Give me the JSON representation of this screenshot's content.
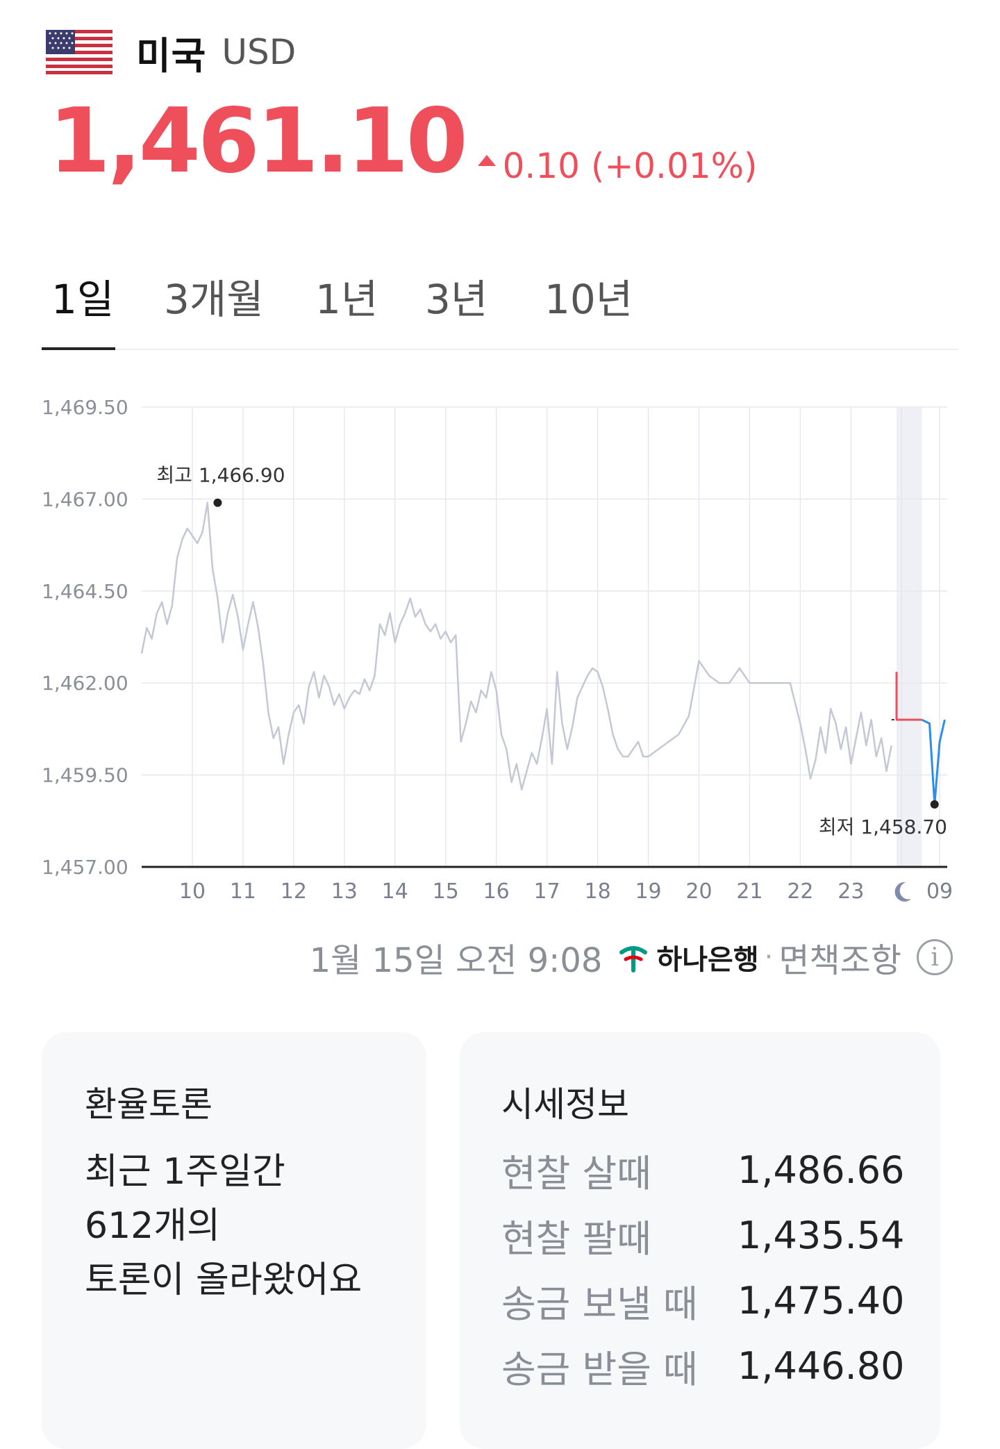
{
  "header": {
    "country": "미국",
    "currency_code": "USD",
    "flag_icon": "us-flag-icon"
  },
  "price": {
    "value": "1,461.10",
    "change": "0.10 (+0.01%)",
    "direction": "up",
    "color": "#ee4f5a"
  },
  "tabs": [
    {
      "label": "1일",
      "active": true
    },
    {
      "label": "3개월",
      "active": false
    },
    {
      "label": "1년",
      "active": false
    },
    {
      "label": "3년",
      "active": false
    },
    {
      "label": "10년",
      "active": false
    }
  ],
  "chart_data": {
    "type": "line",
    "x_tick_labels": [
      "10",
      "11",
      "12",
      "13",
      "14",
      "15",
      "16",
      "17",
      "18",
      "19",
      "20",
      "21",
      "22",
      "23",
      "moon-icon",
      "09"
    ],
    "y_tick_labels": [
      "1,469.50",
      "1,467.00",
      "1,464.50",
      "1,462.00",
      "1,459.50",
      "1,457.00"
    ],
    "ylim": [
      1457.0,
      1469.5
    ],
    "grid": true,
    "high_label": "최고 1,466.90",
    "low_label": "최저 1,458.70",
    "high": 1466.9,
    "low": 1458.7,
    "reference_value": 1461.0,
    "series": [
      {
        "color": "#c4c8d6",
        "x": [
          9.0,
          9.1,
          9.2,
          9.3,
          9.4,
          9.5,
          9.6,
          9.7,
          9.8,
          9.9,
          10.0,
          10.1,
          10.2,
          10.3,
          10.4,
          10.5,
          10.6,
          10.7,
          10.8,
          10.9,
          11.0,
          11.1,
          11.2,
          11.3,
          11.4,
          11.5,
          11.6,
          11.7,
          11.8,
          11.9,
          12.0,
          12.1,
          12.2,
          12.3,
          12.4,
          12.5,
          12.6,
          12.7,
          12.8,
          12.9,
          13.0,
          13.1,
          13.2,
          13.3,
          13.4,
          13.5,
          13.6,
          13.7,
          13.8,
          13.9,
          14.0,
          14.1,
          14.2,
          14.3,
          14.4,
          14.5,
          14.6,
          14.7,
          14.8,
          14.9,
          15.0,
          15.1,
          15.2,
          15.3,
          15.4,
          15.5,
          15.6,
          15.7,
          15.8,
          15.9,
          16.0,
          16.1,
          16.2,
          16.3,
          16.4,
          16.5,
          16.6,
          16.7,
          16.8,
          16.9,
          17.0,
          17.1,
          17.2,
          17.3,
          17.4,
          17.5,
          17.6,
          17.7,
          17.8,
          17.9,
          18.0,
          18.1,
          18.2,
          18.3,
          18.4,
          18.5,
          18.6,
          18.7,
          18.8,
          18.9,
          19.0,
          19.2,
          19.4,
          19.6,
          19.8,
          20.0,
          20.2,
          20.4,
          20.6,
          20.8,
          21.0,
          21.2,
          21.4,
          21.6,
          21.8,
          22.0,
          22.1,
          22.2,
          22.3,
          22.4,
          22.5,
          22.6,
          22.7,
          22.8,
          22.9,
          23.0,
          23.1,
          23.2,
          23.3,
          23.4,
          23.5,
          23.6,
          23.7,
          23.8
        ],
        "y": [
          1462.8,
          1463.5,
          1463.2,
          1463.9,
          1464.2,
          1463.6,
          1464.1,
          1465.4,
          1465.9,
          1466.2,
          1466.0,
          1465.8,
          1466.1,
          1466.9,
          1465.1,
          1464.3,
          1463.1,
          1463.9,
          1464.4,
          1463.8,
          1462.9,
          1463.6,
          1464.2,
          1463.5,
          1462.5,
          1461.2,
          1460.5,
          1460.8,
          1459.8,
          1460.6,
          1461.2,
          1461.4,
          1460.9,
          1461.9,
          1462.3,
          1461.6,
          1462.2,
          1461.9,
          1461.4,
          1461.7,
          1461.3,
          1461.6,
          1461.8,
          1461.7,
          1462.1,
          1461.8,
          1462.2,
          1463.6,
          1463.3,
          1463.9,
          1463.1,
          1463.6,
          1463.9,
          1464.3,
          1463.8,
          1464.0,
          1463.6,
          1463.4,
          1463.6,
          1463.2,
          1463.4,
          1463.1,
          1463.3,
          1460.4,
          1460.9,
          1461.5,
          1461.2,
          1461.8,
          1461.6,
          1462.3,
          1461.8,
          1460.6,
          1460.2,
          1459.3,
          1459.8,
          1459.1,
          1459.6,
          1460.1,
          1459.8,
          1460.5,
          1461.3,
          1459.8,
          1462.3,
          1460.9,
          1460.2,
          1460.8,
          1461.6,
          1461.9,
          1462.2,
          1462.4,
          1462.3,
          1461.9,
          1461.3,
          1460.6,
          1460.2,
          1460.0,
          1460.0,
          1460.2,
          1460.4,
          1460.0,
          1460.0,
          1460.2,
          1460.4,
          1460.6,
          1461.1,
          1462.6,
          1462.2,
          1462.0,
          1462.0,
          1462.4,
          1462.0,
          1462.0,
          1462.0,
          1462.0,
          1462.0,
          1460.9,
          1460.2,
          1459.4,
          1459.9,
          1460.8,
          1460.1,
          1461.3,
          1460.9,
          1460.2,
          1460.8,
          1459.8,
          1460.5,
          1461.2,
          1460.3,
          1461.0,
          1460.0,
          1460.5,
          1459.6,
          1460.3
        ]
      },
      {
        "color": "#ee4f5a",
        "x": [
          23.9,
          24.4
        ],
        "y": [
          1462.3,
          1461.0
        ]
      },
      {
        "color": "#2d8cf0",
        "x": [
          24.4,
          24.55,
          24.65,
          24.75,
          24.85
        ],
        "y": [
          1461.0,
          1460.9,
          1458.7,
          1460.4,
          1461.0
        ]
      }
    ]
  },
  "updated_text": "1월 15일 오전 9:08",
  "bank": {
    "name": "하나은행",
    "logo_icon": "hana-bank-logo-icon",
    "color": "#009a86"
  },
  "disclaimer": "면책조항",
  "discussion": {
    "title": "환율토론",
    "lines": [
      "최근 1주일간",
      "612개의",
      "토론이 올라왔어요"
    ]
  },
  "quotes": {
    "title": "시세정보",
    "rows": [
      {
        "label": "현찰 살때",
        "value": "1,486.66"
      },
      {
        "label": "현찰 팔때",
        "value": "1,435.54"
      },
      {
        "label": "송금 보낼 때",
        "value": "1,475.40"
      },
      {
        "label": "송금 받을 때",
        "value": "1,446.80"
      }
    ]
  }
}
